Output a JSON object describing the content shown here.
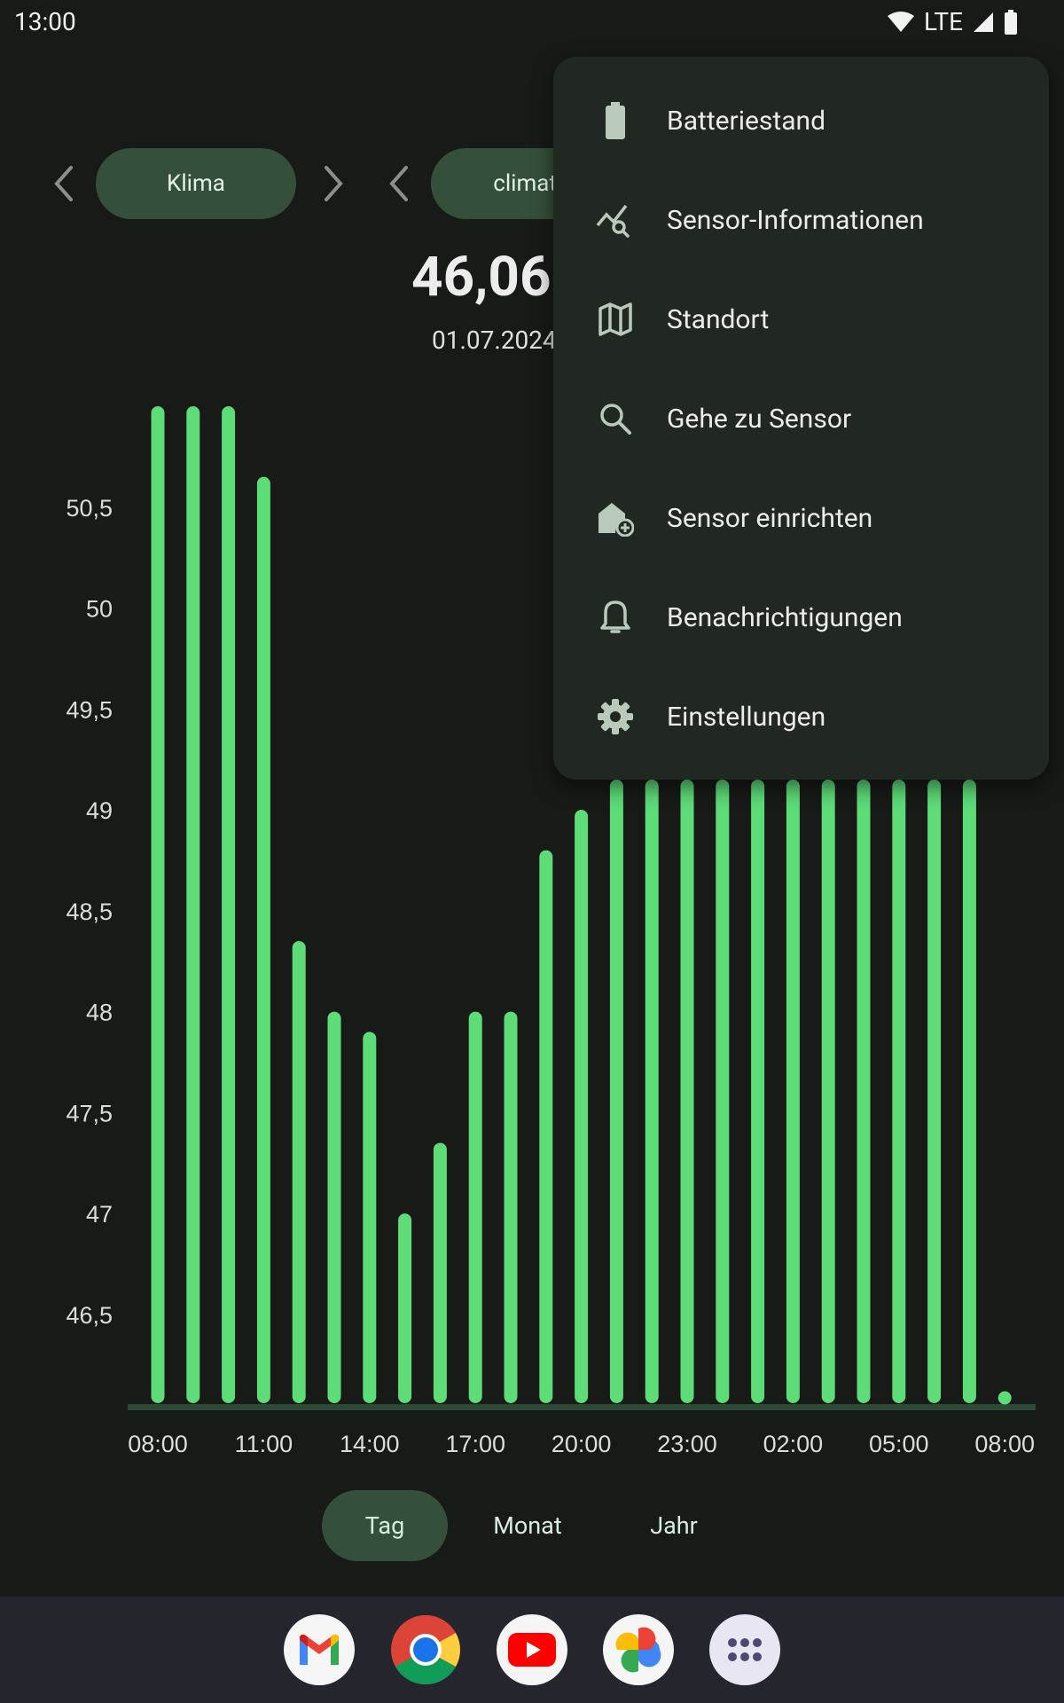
{
  "status_bar": {
    "time": "13:00",
    "network": "LTE"
  },
  "selectors": {
    "group_label": "Klima",
    "sensor_label": "climate"
  },
  "reading": {
    "value": "46,06",
    "date": "01.07.2024"
  },
  "chart_data": {
    "type": "bar",
    "x": [
      "08:00",
      "09:00",
      "10:00",
      "11:00",
      "12:00",
      "13:00",
      "14:00",
      "15:00",
      "16:00",
      "17:00",
      "18:00",
      "19:00",
      "20:00",
      "21:00",
      "22:00",
      "23:00",
      "00:00",
      "01:00",
      "02:00",
      "03:00",
      "04:00",
      "05:00",
      "06:00",
      "07:00",
      "08:00"
    ],
    "values": [
      51.0,
      51.0,
      51.0,
      50.65,
      48.35,
      48.0,
      47.9,
      47.0,
      47.35,
      48.0,
      48.0,
      48.8,
      49.0,
      49.15,
      49.15,
      49.15,
      49.15,
      49.15,
      49.15,
      49.15,
      49.15,
      49.15,
      49.15,
      49.15,
      46.06
    ],
    "xticks": [
      "08:00",
      "11:00",
      "14:00",
      "17:00",
      "20:00",
      "23:00",
      "02:00",
      "05:00",
      "08:00"
    ],
    "yticks": [
      "46,5",
      "47",
      "47,5",
      "48",
      "48,5",
      "49",
      "49,5",
      "50",
      "50,5"
    ],
    "ytick_values": [
      46.5,
      47,
      47.5,
      48,
      48.5,
      49,
      49.5,
      50,
      50.5
    ],
    "ylim": [
      46.06,
      51.0
    ],
    "bar_color": "#5ddc78",
    "grid": false
  },
  "tabs": [
    {
      "label": "Tag",
      "active": true
    },
    {
      "label": "Monat",
      "active": false
    },
    {
      "label": "Jahr",
      "active": false
    }
  ],
  "menu": {
    "items": [
      {
        "label": "Batteriestand",
        "icon": "battery-icon"
      },
      {
        "label": "Sensor-Informationen",
        "icon": "chart-search-icon"
      },
      {
        "label": "Standort",
        "icon": "map-icon"
      },
      {
        "label": "Gehe zu Sensor",
        "icon": "search-icon"
      },
      {
        "label": "Sensor einrichten",
        "icon": "add-home-icon"
      },
      {
        "label": "Benachrichtigungen",
        "icon": "bell-icon"
      },
      {
        "label": "Einstellungen",
        "icon": "gear-icon"
      }
    ]
  },
  "dock": {
    "apps": [
      {
        "name": "gmail-icon"
      },
      {
        "name": "chrome-icon"
      },
      {
        "name": "youtube-icon"
      },
      {
        "name": "photos-icon"
      },
      {
        "name": "app-drawer-icon"
      }
    ]
  },
  "colors": {
    "accent": "#5ddc78",
    "chip_bg": "#34503a",
    "menu_bg": "#212822",
    "background": "#181a18"
  }
}
